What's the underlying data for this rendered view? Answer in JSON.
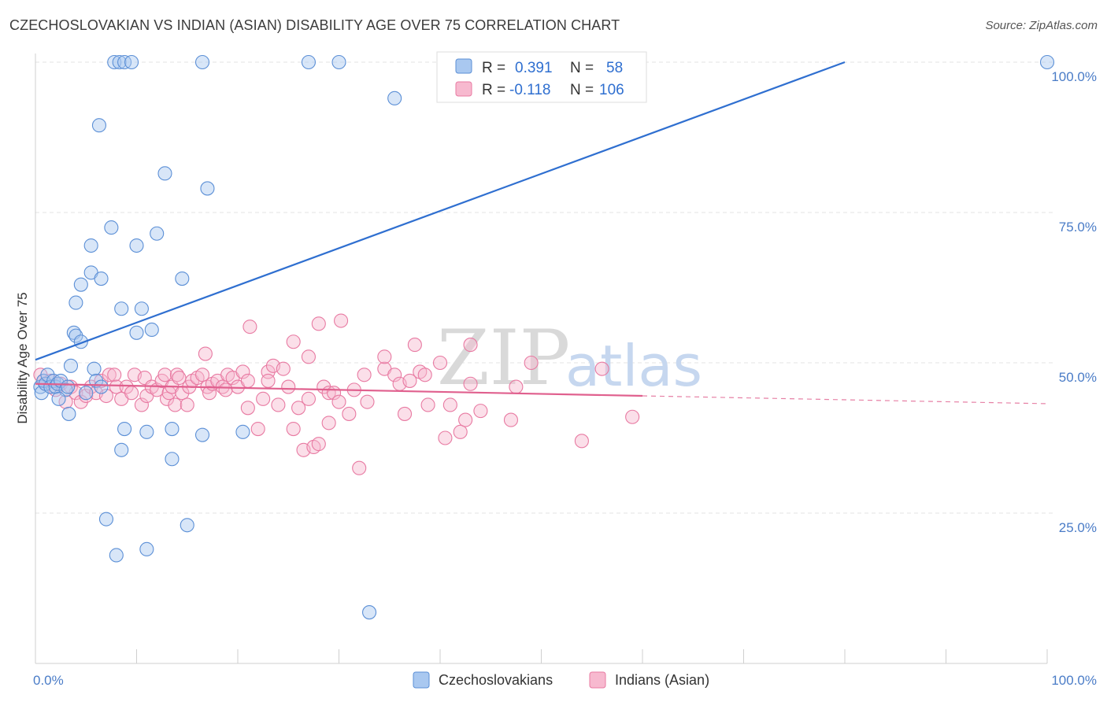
{
  "title": "CZECHOSLOVAKIAN VS INDIAN (ASIAN) DISABILITY AGE OVER 75 CORRELATION CHART",
  "source": "Source: ZipAtlas.com",
  "watermark": {
    "zip": "ZIP",
    "atlas": "atlas"
  },
  "legend_top": [
    {
      "r_label": "R =",
      "r_value": "0.391",
      "n_label": "N =",
      "n_value": "58"
    },
    {
      "r_label": "R =",
      "r_value": "-0.118",
      "n_label": "N =",
      "n_value": "106"
    }
  ],
  "legend_bottom": [
    "Czechoslovakians",
    "Indians (Asian)"
  ],
  "colors": {
    "blue_fill": "#a9c8f0",
    "blue_stroke": "#5b8fd6",
    "blue_line": "#2f6fd0",
    "pink_fill": "#f7b9cf",
    "pink_stroke": "#e87aa2",
    "pink_line": "#e0608e",
    "grid": "#e3e3e3",
    "tick_label": "#4a7cc7"
  },
  "chart_data": {
    "type": "scatter",
    "title": "CZECHOSLOVAKIAN VS INDIAN (ASIAN) DISABILITY AGE OVER 75 CORRELATION CHART",
    "xlabel": "",
    "ylabel": "Disability Age Over 75",
    "xlim": [
      0,
      100
    ],
    "ylim": [
      0,
      100
    ],
    "x_tick_labels": [
      "0.0%",
      "100.0%"
    ],
    "y_tick_labels": [
      "25.0%",
      "50.0%",
      "75.0%",
      "100.0%"
    ],
    "y_ticks": [
      25,
      50,
      75,
      100
    ],
    "grid": true,
    "series": [
      {
        "name": "Czechoslovakians",
        "color": "blue",
        "trend": {
          "x": [
            0,
            80
          ],
          "y": [
            50.5,
            100
          ]
        },
        "points": [
          [
            0.5,
            46
          ],
          [
            0.6,
            45
          ],
          [
            0.8,
            47
          ],
          [
            1,
            46.5
          ],
          [
            1.2,
            48
          ],
          [
            1.5,
            46
          ],
          [
            1.8,
            47
          ],
          [
            2,
            46
          ],
          [
            2.2,
            46.5
          ],
          [
            2.5,
            47
          ],
          [
            3,
            45.5
          ],
          [
            3.2,
            46
          ],
          [
            2.3,
            44
          ],
          [
            3.3,
            41.5
          ],
          [
            3.5,
            49.5
          ],
          [
            3.8,
            55
          ],
          [
            4,
            54.5
          ],
          [
            4.5,
            53.5
          ],
          [
            4,
            60
          ],
          [
            4.5,
            63
          ],
          [
            5.5,
            65
          ],
          [
            5.5,
            69.5
          ],
          [
            5,
            45
          ],
          [
            5.8,
            49
          ],
          [
            6,
            47
          ],
          [
            6.5,
            46
          ],
          [
            6.5,
            64
          ],
          [
            7.5,
            72.5
          ],
          [
            8,
            18
          ],
          [
            8.5,
            35.5
          ],
          [
            8.8,
            39
          ],
          [
            8.5,
            59
          ],
          [
            7,
            24
          ],
          [
            6.3,
            89.5
          ],
          [
            7.8,
            100
          ],
          [
            8.3,
            100
          ],
          [
            8.8,
            100
          ],
          [
            9.5,
            100
          ],
          [
            10,
            55
          ],
          [
            10,
            69.5
          ],
          [
            10.5,
            59
          ],
          [
            11,
            19
          ],
          [
            11,
            38.5
          ],
          [
            11.5,
            55.5
          ],
          [
            12,
            71.5
          ],
          [
            12.8,
            81.5
          ],
          [
            13.5,
            34
          ],
          [
            13.5,
            39
          ],
          [
            14.5,
            64
          ],
          [
            15,
            23
          ],
          [
            16.5,
            38
          ],
          [
            17,
            79
          ],
          [
            16.5,
            100
          ],
          [
            20.5,
            38.5
          ],
          [
            27,
            100
          ],
          [
            30,
            100
          ],
          [
            33,
            8.5
          ],
          [
            35.5,
            94
          ],
          [
            100,
            100
          ]
        ]
      },
      {
        "name": "Indians (Asian)",
        "color": "pink",
        "trend": {
          "x": [
            0,
            60
          ],
          "y": [
            46.5,
            44.5
          ]
        },
        "trend_dashed": {
          "x": [
            60,
            100
          ],
          "y": [
            44.5,
            43.2
          ]
        },
        "points": [
          [
            0.5,
            48
          ],
          [
            0.8,
            47
          ],
          [
            1,
            46.5
          ],
          [
            1.5,
            47
          ],
          [
            2,
            45.5
          ],
          [
            2.5,
            46.5
          ],
          [
            3,
            43.5
          ],
          [
            3.5,
            46
          ],
          [
            4,
            45
          ],
          [
            4.5,
            43.5
          ],
          [
            5,
            44.5
          ],
          [
            5.5,
            46
          ],
          [
            6,
            45
          ],
          [
            6.5,
            47
          ],
          [
            7,
            44.5
          ],
          [
            7.3,
            48
          ],
          [
            7.8,
            48
          ],
          [
            8,
            46
          ],
          [
            8.5,
            44
          ],
          [
            9,
            46
          ],
          [
            9.5,
            45
          ],
          [
            9.8,
            48
          ],
          [
            10.5,
            43
          ],
          [
            10.8,
            47.5
          ],
          [
            11,
            44.5
          ],
          [
            11.5,
            46
          ],
          [
            12,
            45.5
          ],
          [
            12.5,
            47
          ],
          [
            12.8,
            48
          ],
          [
            13,
            44
          ],
          [
            13.2,
            45
          ],
          [
            13.5,
            46
          ],
          [
            13.8,
            43
          ],
          [
            14,
            48
          ],
          [
            14.2,
            47.5
          ],
          [
            14.5,
            45
          ],
          [
            15,
            43
          ],
          [
            15.2,
            46
          ],
          [
            15.5,
            47
          ],
          [
            16,
            47.5
          ],
          [
            16.5,
            48
          ],
          [
            16.8,
            51.5
          ],
          [
            17,
            46
          ],
          [
            17.2,
            45
          ],
          [
            17.5,
            46.5
          ],
          [
            18,
            47
          ],
          [
            18.5,
            46
          ],
          [
            18.8,
            45.5
          ],
          [
            19,
            48
          ],
          [
            19.5,
            47.5
          ],
          [
            20,
            46
          ],
          [
            20.5,
            48.5
          ],
          [
            21,
            47
          ],
          [
            21,
            42.5
          ],
          [
            21.2,
            56
          ],
          [
            22,
            39
          ],
          [
            22.5,
            44
          ],
          [
            23,
            48.5
          ],
          [
            23,
            47
          ],
          [
            23.5,
            49.5
          ],
          [
            24,
            43
          ],
          [
            24.5,
            49
          ],
          [
            25,
            46
          ],
          [
            25.5,
            39
          ],
          [
            25.5,
            53.5
          ],
          [
            26,
            42.5
          ],
          [
            26.5,
            35.5
          ],
          [
            27,
            44
          ],
          [
            27,
            51
          ],
          [
            27.5,
            36
          ],
          [
            28,
            36.5
          ],
          [
            28,
            56.5
          ],
          [
            28.5,
            46
          ],
          [
            29,
            45
          ],
          [
            29,
            40
          ],
          [
            29.5,
            45
          ],
          [
            30,
            43.5
          ],
          [
            30.2,
            57
          ],
          [
            31,
            41.5
          ],
          [
            31.5,
            45.5
          ],
          [
            32,
            32.5
          ],
          [
            32.5,
            48
          ],
          [
            32.8,
            43.5
          ],
          [
            34.5,
            49
          ],
          [
            34.5,
            51
          ],
          [
            35.5,
            48
          ],
          [
            36,
            46.5
          ],
          [
            36.5,
            41.5
          ],
          [
            37,
            47
          ],
          [
            37.5,
            53
          ],
          [
            38,
            48.5
          ],
          [
            38.5,
            48
          ],
          [
            38.8,
            43
          ],
          [
            40,
            50
          ],
          [
            40.5,
            37.5
          ],
          [
            41,
            43
          ],
          [
            42,
            38.5
          ],
          [
            42.5,
            40.5
          ],
          [
            43,
            53
          ],
          [
            43,
            46.5
          ],
          [
            44,
            42
          ],
          [
            47,
            40.5
          ],
          [
            47.5,
            46
          ],
          [
            49,
            50
          ],
          [
            54,
            37
          ],
          [
            56,
            49
          ],
          [
            59,
            41
          ]
        ]
      }
    ]
  }
}
